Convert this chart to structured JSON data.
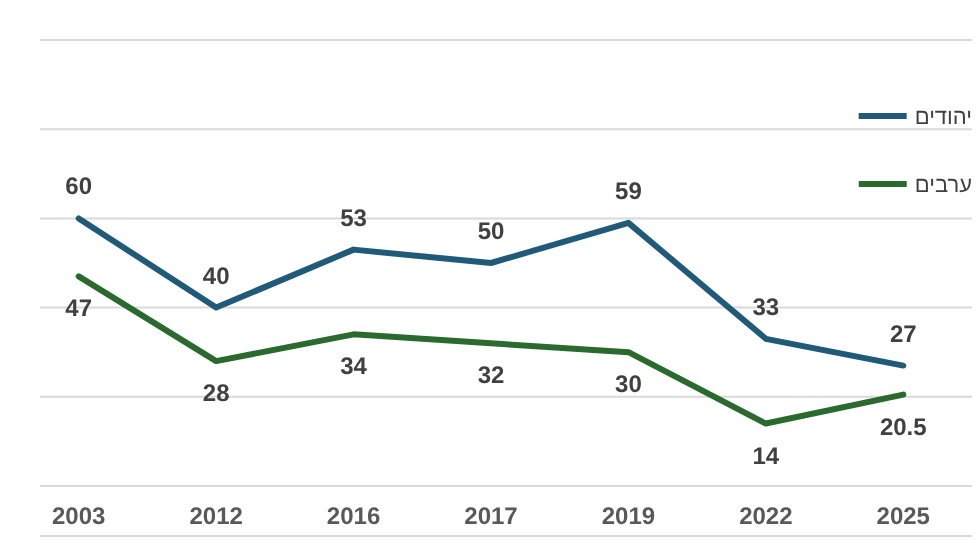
{
  "chart_data": {
    "type": "line",
    "categories": [
      "2003",
      "2012",
      "2016",
      "2017",
      "2019",
      "2022",
      "2025"
    ],
    "series": [
      {
        "name": "יהודים",
        "color": "#215a78",
        "values": [
          60,
          40,
          53,
          50,
          59,
          33,
          27
        ]
      },
      {
        "name": "ערבים",
        "color": "#2b6a2e",
        "values": [
          47,
          28,
          34,
          32,
          30,
          14,
          20.5
        ]
      }
    ],
    "ylim": [
      0,
      100
    ],
    "yticks": [
      {
        "value": 0,
        "label": null
      },
      {
        "value": 20,
        "label": null
      },
      {
        "value": 40,
        "label": null
      },
      {
        "value": 60,
        "label": null
      },
      {
        "value": 80,
        "label": null
      },
      {
        "value": 100,
        "label": null
      }
    ],
    "grid": "y",
    "legend": "top right",
    "data_labels": true,
    "marker": "none",
    "line_style": "solid"
  }
}
